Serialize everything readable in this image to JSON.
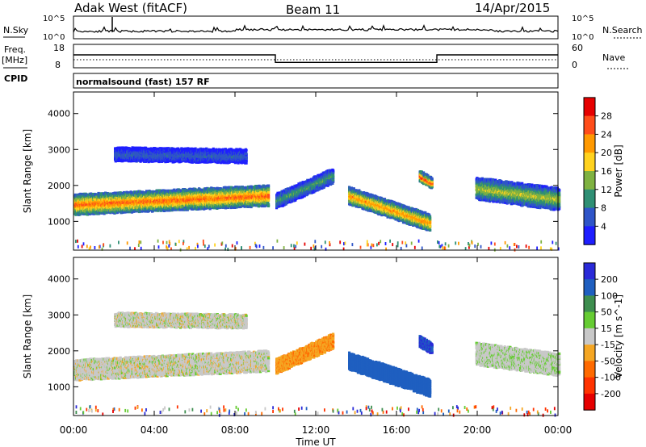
{
  "header": {
    "station": "Adak West (fitACF)",
    "beam": "Beam 11",
    "date": "14/Apr/2015"
  },
  "panels": {
    "nsky_label": "N.Sky",
    "nsky_ticks": [
      "10^5",
      "10^0"
    ],
    "nsearch_label": "N.Search",
    "nsearch_ticks": [
      "10^5",
      "10^0"
    ],
    "freq_label": "Freq.",
    "freq_unit": "[MHz]",
    "freq_ticks": [
      "18",
      "8"
    ],
    "nave_label": "Nave",
    "nave_ticks": [
      "60",
      "0"
    ],
    "cpid_label": "CPID",
    "cpid_text": "normalsound (fast) 157 RF"
  },
  "freq_steps": [
    {
      "start_h": 0,
      "end_h": 10,
      "mhz": 13.5
    },
    {
      "start_h": 10,
      "end_h": 18,
      "mhz": 10.3
    },
    {
      "start_h": 18,
      "end_h": 24,
      "mhz": 13.5
    }
  ],
  "colors": {
    "power": [
      "#1e1eff",
      "#2f55c8",
      "#2f8f74",
      "#7fb241",
      "#ffd21e",
      "#ff9900",
      "#ff4d1a",
      "#e60000"
    ],
    "velocity": [
      "#2a2ad8",
      "#1f5fc0",
      "#3e8e4f",
      "#66cc33",
      "#c8c8c8",
      "#f5a623",
      "#ff6a00",
      "#ff3300",
      "#e60000"
    ]
  },
  "chart_data": [
    {
      "type": "heatmap",
      "title": "",
      "xlabel": "Time UT",
      "ylabel": "Slant Range [km]",
      "x_ticks": [
        "00:00",
        "04:00",
        "08:00",
        "12:00",
        "16:00",
        "20:00",
        "00:00"
      ],
      "y_ticks": [
        "1000",
        "2000",
        "3000",
        "4000"
      ],
      "xlim_hours": [
        0,
        24
      ],
      "ylim_km": [
        200,
        4600
      ],
      "colorbar": {
        "label": "Power [dB]",
        "ticks": [
          "4",
          "8",
          "12",
          "16",
          "20",
          "24",
          "28"
        ],
        "range": [
          0,
          30
        ]
      },
      "features": [
        {
          "t0": 0.0,
          "t1": 9.6,
          "r0": 1500,
          "r1": 1750,
          "slope": 90,
          "width": 520,
          "peak": 22
        },
        {
          "t0": 2.0,
          "t1": 8.5,
          "r0": 2900,
          "r1": 2850,
          "slope": 0,
          "width": 330,
          "peak": 6
        },
        {
          "t0": 10.0,
          "t1": 12.8,
          "r0": 1600,
          "r1": 2300,
          "slope": 0,
          "width": 360,
          "peak": 10
        },
        {
          "t0": 13.6,
          "t1": 17.6,
          "r0": 1750,
          "r1": 1000,
          "slope": 0,
          "width": 420,
          "peak": 20
        },
        {
          "t0": 17.1,
          "t1": 17.7,
          "r0": 2300,
          "r1": 2100,
          "slope": 0,
          "width": 260,
          "peak": 24
        },
        {
          "t0": 19.9,
          "t1": 24.0,
          "r0": 1950,
          "r1": 1650,
          "slope": 0,
          "width": 560,
          "peak": 14
        }
      ]
    },
    {
      "type": "heatmap",
      "title": "",
      "xlabel": "Time UT",
      "ylabel": "Slant Range [km]",
      "x_ticks": [
        "00:00",
        "04:00",
        "08:00",
        "12:00",
        "16:00",
        "20:00",
        "00:00"
      ],
      "y_ticks": [
        "1000",
        "2000",
        "3000",
        "4000"
      ],
      "xlim_hours": [
        0,
        24
      ],
      "ylim_km": [
        200,
        4600
      ],
      "colorbar": {
        "label": "Velocity [m s^-1]",
        "ticks": [
          "200",
          "100",
          "50",
          "15",
          "-15",
          "-50",
          "-100",
          "-200"
        ],
        "range": [
          -250,
          250
        ]
      },
      "features": [
        {
          "t0": 0.0,
          "t1": 9.6,
          "r0": 1500,
          "r1": 1750,
          "slope": 90,
          "width": 520,
          "velocity": 0
        },
        {
          "t0": 2.0,
          "t1": 8.5,
          "r0": 2900,
          "r1": 2850,
          "slope": 0,
          "width": 330,
          "velocity": 0
        },
        {
          "t0": 10.0,
          "t1": 12.8,
          "r0": 1600,
          "r1": 2300,
          "slope": 0,
          "width": 360,
          "velocity": -40
        },
        {
          "t0": 13.6,
          "t1": 17.6,
          "r0": 1750,
          "r1": 1000,
          "slope": 0,
          "width": 420,
          "velocity": 120
        },
        {
          "t0": 17.1,
          "t1": 17.7,
          "r0": 2300,
          "r1": 2100,
          "slope": 0,
          "width": 260,
          "velocity": 200
        },
        {
          "t0": 19.9,
          "t1": 24.0,
          "r0": 1950,
          "r1": 1650,
          "slope": 0,
          "width": 560,
          "velocity": 5
        }
      ]
    }
  ]
}
